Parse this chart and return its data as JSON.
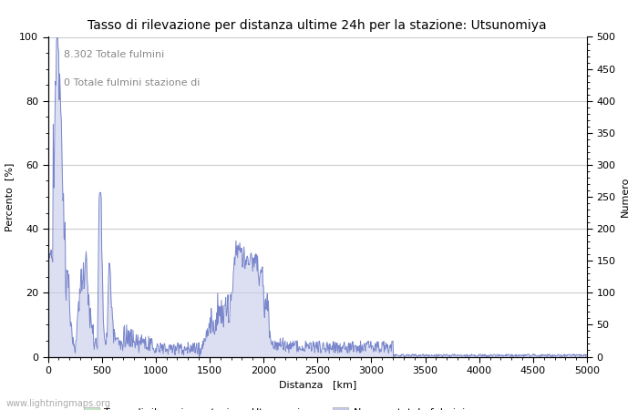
{
  "title": "Tasso di rilevazione per distanza ultime 24h per la stazione: Utsunomiya",
  "xlabel": "Distanza   [km]",
  "ylabel_left": "Percento  [%]",
  "ylabel_right": "Numero",
  "annotation_line1": "8.302 Totale fulmini",
  "annotation_line2": "0 Totale fulmini stazione di",
  "xlim": [
    0,
    5000
  ],
  "ylim_left": [
    0,
    100
  ],
  "ylim_right": [
    0,
    500
  ],
  "yticks_left": [
    0,
    20,
    40,
    60,
    80,
    100
  ],
  "yticks_right": [
    0,
    50,
    100,
    150,
    200,
    250,
    300,
    350,
    400,
    450,
    500
  ],
  "xticks": [
    0,
    500,
    1000,
    1500,
    2000,
    2500,
    3000,
    3500,
    4000,
    4500,
    5000
  ],
  "legend_label1": "Tasso di rilevazione stazione Utsunomiya",
  "legend_label2": "Numero totale fulmini",
  "legend_color1": "#b2dfdb",
  "legend_color2": "#c5cae9",
  "line_color": "#7986cb",
  "fill_color": "#c5cae9",
  "watermark": "www.lightningmaps.org",
  "background_color": "#ffffff",
  "grid_color": "#cccccc",
  "title_fontsize": 10,
  "axis_fontsize": 8,
  "tick_fontsize": 8,
  "annotation_fontsize": 8
}
